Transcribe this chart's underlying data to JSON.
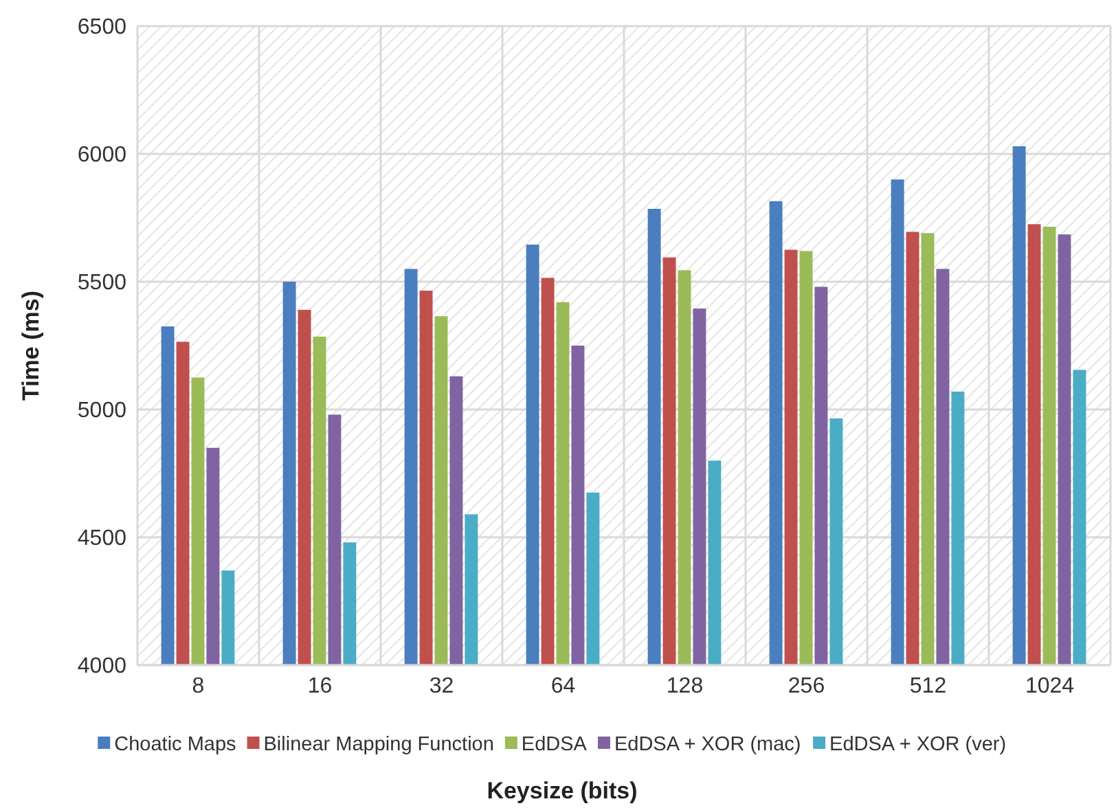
{
  "chart_data": {
    "type": "bar",
    "xlabel": "Keysize (bits)",
    "ylabel": "Time (ms)",
    "categories": [
      "8",
      "16",
      "32",
      "64",
      "128",
      "256",
      "512",
      "1024"
    ],
    "series": [
      {
        "name": "Choatic Maps",
        "color": "#4a7ebf",
        "values": [
          5325,
          5500,
          5550,
          5645,
          5785,
          5815,
          5900,
          6030
        ]
      },
      {
        "name": "Bilinear Mapping Function",
        "color": "#c0504d",
        "values": [
          5265,
          5390,
          5465,
          5515,
          5595,
          5625,
          5695,
          5725
        ]
      },
      {
        "name": "EdDSA",
        "color": "#9bbb59",
        "values": [
          5125,
          5285,
          5365,
          5420,
          5545,
          5620,
          5690,
          5715
        ]
      },
      {
        "name": "EdDSA + XOR (mac)",
        "color": "#8064a2",
        "values": [
          4850,
          4980,
          5130,
          5250,
          5395,
          5480,
          5550,
          5685
        ]
      },
      {
        "name": "EdDSA + XOR (ver)",
        "color": "#4bacc6",
        "values": [
          4370,
          4480,
          4590,
          4675,
          4800,
          4965,
          5070,
          5155
        ]
      }
    ],
    "ylim": [
      4000,
      6500
    ],
    "yticks": [
      4000,
      4500,
      5000,
      5500,
      6000,
      6500
    ],
    "grid": true,
    "legend": "bottom"
  }
}
